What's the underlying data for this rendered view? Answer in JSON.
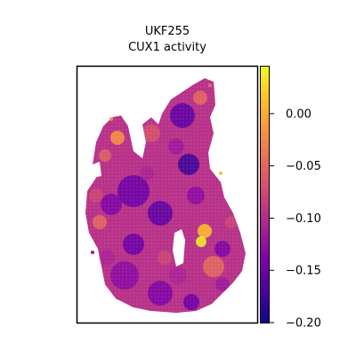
{
  "chart_data": {
    "type": "heatmap",
    "title_line1": "UKF255",
    "title_line2": "CUX1 activity",
    "xlabel": "",
    "ylabel": "",
    "colormap": "plasma",
    "colorbar": {
      "range": [
        -0.2,
        0.045
      ],
      "ticks": [
        0.0,
        -0.05,
        -0.1,
        -0.15,
        -0.2
      ],
      "tick_labels": [
        "0.00",
        "−0.05",
        "−0.10",
        "−0.15",
        "−0.20"
      ]
    },
    "grid": false,
    "legend": "none"
  },
  "colors": {
    "frame": "#000000",
    "background": "#ffffff"
  }
}
